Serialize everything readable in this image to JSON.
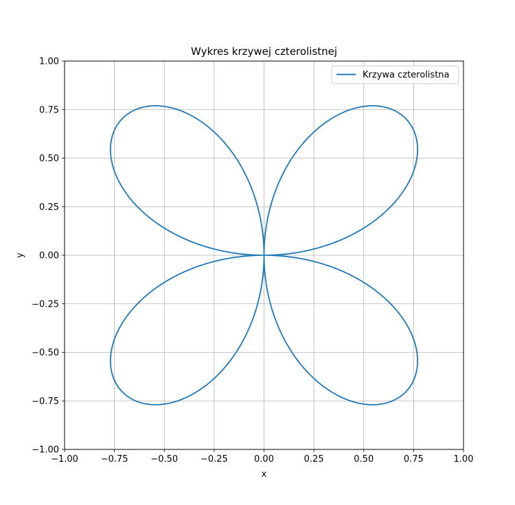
{
  "chart_data": {
    "type": "line",
    "title": "Wykres krzywej czterolistnej",
    "xlabel": "x",
    "ylabel": "y",
    "xlim": [
      -1.0,
      1.0
    ],
    "ylim": [
      -1.0,
      1.0
    ],
    "xticks": [
      "−1.00",
      "−0.75",
      "−0.50",
      "−0.25",
      "0.00",
      "0.25",
      "0.50",
      "0.75",
      "1.00"
    ],
    "yticks": [
      "−1.00",
      "−0.75",
      "−0.50",
      "−0.25",
      "0.00",
      "0.25",
      "0.50",
      "0.75",
      "1.00"
    ],
    "grid": true,
    "legend_position": "top-right",
    "series": [
      {
        "name": "Krzywa czterolistna",
        "color": "#1f77b4",
        "equation": "r = sin(2θ), θ ∈ [0, 2π]"
      }
    ]
  }
}
